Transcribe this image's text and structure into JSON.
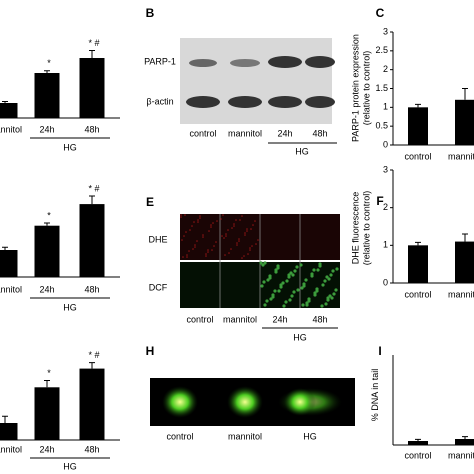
{
  "chart_data": [
    {
      "type": "bar",
      "categories": [
        "mannitol",
        "24h",
        "48h"
      ],
      "group": "HG",
      "values": [
        1,
        3.0,
        4.0
      ],
      "errors": [
        0.1,
        0.15,
        0.5
      ],
      "marks": [
        null,
        "*",
        "* #"
      ],
      "color": "#000000"
    },
    {
      "type": "bar",
      "categories": [
        "mannitol",
        "24h",
        "48h"
      ],
      "group": "HG",
      "values": [
        1,
        1.9,
        2.7
      ],
      "errors": [
        0.1,
        0.1,
        0.3
      ],
      "marks": [
        null,
        "*",
        "* #"
      ],
      "color": "#000000"
    },
    {
      "type": "bar",
      "categories": [
        "mannitol",
        "24h",
        "48h"
      ],
      "group": "HG",
      "values": [
        1,
        3.1,
        4.2
      ],
      "errors": [
        0.4,
        0.4,
        0.35
      ],
      "marks": [
        null,
        "*",
        "* #"
      ],
      "color": "#000000"
    },
    {
      "type": "bar",
      "letter": "C",
      "ylabel": "PARP-1 protein expression\n(relative to control)",
      "categories": [
        "control",
        "mannitol"
      ],
      "values": [
        1.0,
        1.2
      ],
      "errors": [
        0.08,
        0.3
      ],
      "color": "#000000",
      "ylim": [
        0,
        3
      ],
      "yticks": [
        0,
        0.5,
        1,
        1.5,
        2,
        2.5,
        3
      ]
    },
    {
      "type": "bar",
      "letter": "F",
      "ylabel": "DHE fluorescence\n(relative to control)",
      "categories": [
        "control",
        "mannitol"
      ],
      "values": [
        1.0,
        1.1
      ],
      "errors": [
        0.08,
        0.2
      ],
      "color": "#000000",
      "ylim": [
        0,
        3
      ],
      "yticks": [
        0,
        1,
        2,
        3
      ]
    },
    {
      "type": "bar",
      "letter": "I",
      "ylabel": "% DNA in tail",
      "categories": [
        "control",
        "mannitol"
      ],
      "values": [
        1,
        1.5
      ],
      "errors": [
        0.4,
        0.6
      ],
      "color": "#000000"
    }
  ],
  "blot": {
    "letter": "B",
    "rows": [
      "PARP-1",
      "β-actin"
    ],
    "lanes": [
      "control",
      "mannitol",
      "24h",
      "48h"
    ],
    "group": "HG"
  },
  "fluorescence": {
    "letter": "E",
    "rows": [
      "DHE",
      "DCF"
    ],
    "lanes": [
      "control",
      "mannitol",
      "24h",
      "48h"
    ],
    "group": "HG"
  },
  "comet": {
    "letter": "H",
    "lanes": [
      "control",
      "mannitol",
      "HG"
    ]
  }
}
